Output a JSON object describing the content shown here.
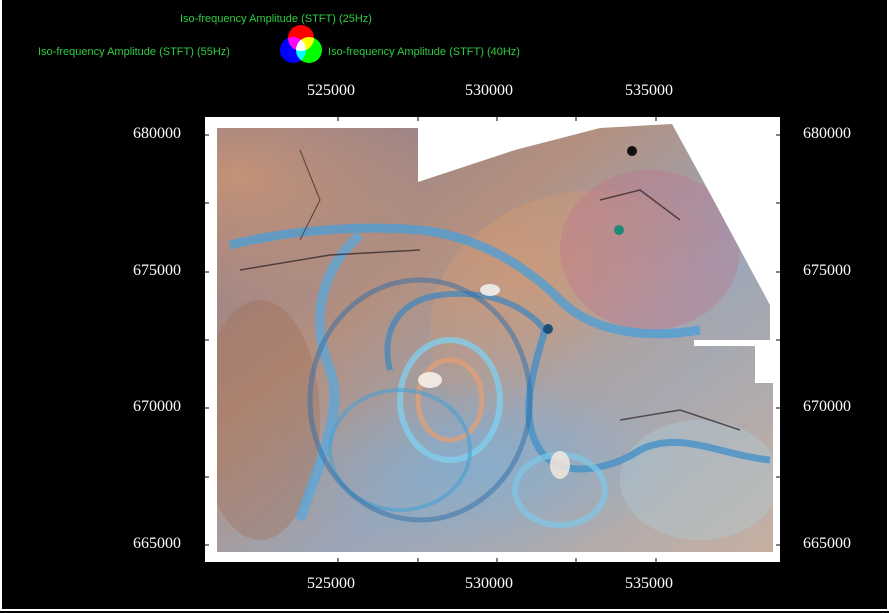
{
  "legend": {
    "red_channel": "Iso-frequency Amplitude (STFT) (25Hz)",
    "blue_channel": "Iso-frequency Amplitude (STFT) (55Hz)",
    "green_channel": "Iso-frequency Amplitude (STFT) (40Hz)",
    "colors": {
      "red": "#ff2020",
      "green": "#20e020",
      "blue": "#2020ff",
      "text": "#2ecc40"
    }
  },
  "x_axis": {
    "ticks": [
      "525000",
      "530000",
      "535000"
    ],
    "range": [
      520500,
      538800
    ]
  },
  "y_axis": {
    "ticks": [
      "680000",
      "675000",
      "670000",
      "665000"
    ],
    "range": [
      664400,
      680700
    ]
  },
  "map": {
    "type": "seismic-rgb-blend-map",
    "background": "#000000",
    "plot_background": "#ffffff"
  }
}
